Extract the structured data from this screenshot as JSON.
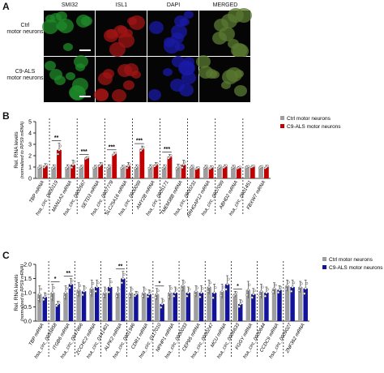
{
  "panels": [
    {
      "letter": "A"
    },
    {
      "letter": "B"
    },
    {
      "letter": "C"
    }
  ],
  "microscopy": {
    "columns": [
      "SMI32",
      "ISL1",
      "DAPI",
      "MERGED"
    ],
    "rows": [
      {
        "line1": "Ctrl",
        "line2": "motor neurons"
      },
      {
        "line1": "C9-ALS",
        "line2": "motor neurons"
      }
    ],
    "channel_colors": {
      "SMI32": "#1f8a2a",
      "ISL1": "#a01414",
      "DAPI": "#1a1aa8",
      "MERGED": "#5a7a30"
    }
  },
  "chart_data": [
    {
      "type": "bar",
      "panel": "B",
      "ylabel_line1": "Rel. RNA levels",
      "ylabel_line2": "(normalized to RPS9 mRNA)",
      "ylim": [
        0,
        5
      ],
      "yticks": [
        0,
        1,
        2,
        3,
        4,
        5
      ],
      "categories": [
        "TBP mRNA",
        "hsa_circ_0000119",
        "MAN1A2 mRNA",
        "hsa_circ_0000567",
        "SETD3 mRNA",
        "hsa_circ_0007778",
        "SLC25A16 mRNA",
        "hsa_circ_0000099",
        "AMY2B mRNA",
        "hsa_circ_0005171",
        "TMEM38B mRNA",
        "hsa_circ_0000231",
        "ARHGAP12 mRNA",
        "hsa_circ_0007099",
        "ABHD2 mRNA",
        "hsa_circ_0001451",
        "FBXW7 mRNA"
      ],
      "separators_after": [
        0,
        2,
        4,
        6,
        8,
        10,
        12,
        14
      ],
      "series": [
        {
          "name": "Ctrl motor neurons",
          "color": "#9e9e9e",
          "values": [
            1.0,
            1.0,
            1.0,
            1.0,
            1.0,
            1.0,
            1.0,
            1.0,
            1.0,
            1.0,
            1.0,
            1.0,
            1.0,
            1.0,
            1.0,
            1.0,
            1.0
          ],
          "errors": [
            0.15,
            0.2,
            0.2,
            0.15,
            0.15,
            0.2,
            0.15,
            0.2,
            0.2,
            0.2,
            0.25,
            0.15,
            0.15,
            0.15,
            0.15,
            0.1,
            0.1
          ]
        },
        {
          "name": "C9-ALS motor neurons",
          "color": "#c00000",
          "values": [
            1.1,
            2.5,
            1.2,
            1.8,
            1.2,
            2.15,
            1.1,
            2.6,
            1.2,
            1.9,
            1.2,
            0.9,
            0.95,
            1.05,
            0.95,
            1.05,
            1.0
          ],
          "errors": [
            0.2,
            0.6,
            0.4,
            0.1,
            0.2,
            0.15,
            0.3,
            0.25,
            0.2,
            0.2,
            0.4,
            0.1,
            0.15,
            0.15,
            0.1,
            0.1,
            0.15
          ]
        }
      ],
      "significance": [
        {
          "category": "hsa_circ_0000119",
          "label": "**"
        },
        {
          "category": "hsa_circ_0000567",
          "label": "***"
        },
        {
          "category": "hsa_circ_0007778",
          "label": "***"
        },
        {
          "category": "hsa_circ_0000099",
          "label": "***"
        },
        {
          "category": "hsa_circ_0005171",
          "label": "***"
        }
      ],
      "legend_position": "top-right"
    },
    {
      "type": "bar",
      "panel": "C",
      "ylabel_line1": "Rel. RNA levels",
      "ylabel_line2": "(normalized to RPS9 mRNA)",
      "ylim": [
        0,
        2.0
      ],
      "yticks": [
        0.0,
        0.5,
        1.0,
        1.5,
        2.0
      ],
      "categories": [
        "TBP mRNA",
        "hsa_circ_0055858",
        "ITGB6 mRNA",
        "hsa_circ_0047866",
        "ZCCHC2 mRNA",
        "hsa_circ_0141401",
        "ALPK2 mRNA",
        "hsa_circ_0001946",
        "CDR1 mRNA",
        "hsa_circ_0117010",
        "NPHP1 mRNA",
        "hsa_circ_0000033",
        "CEP85 mRNA",
        "hsa_circ_0000247",
        "MCU mRNA",
        "hsa_circ_0006633",
        "FGGY mRNA",
        "hsa_circ_0000644",
        "CCDC9 mRNA",
        "hsa_circ_0009027",
        "ZNF362 mRNA"
      ],
      "separators_after": [
        0,
        2,
        4,
        6,
        8,
        10,
        12,
        14,
        16,
        18
      ],
      "series": [
        {
          "name": "Ctrl motor neurons",
          "color": "#9e9e9e",
          "values": [
            0.95,
            1.0,
            1.0,
            1.1,
            1.15,
            1.0,
            1.0,
            1.0,
            1.0,
            0.95,
            1.0,
            1.25,
            1.05,
            1.2,
            1.05,
            0.95,
            1.1,
            1.05,
            1.15,
            1.25,
            1.2
          ],
          "errors": [
            0.3,
            0.3,
            0.25,
            0.25,
            0.3,
            0.2,
            0.2,
            0.2,
            0.2,
            0.2,
            0.25,
            0.2,
            0.2,
            0.25,
            0.25,
            0.1,
            0.3,
            0.25,
            0.2,
            0.2,
            0.2
          ]
        },
        {
          "name": "C9-ALS motor neurons",
          "color": "#13139a",
          "values": [
            0.85,
            0.6,
            1.3,
            1.05,
            1.2,
            1.2,
            1.5,
            0.95,
            0.95,
            0.6,
            1.0,
            1.0,
            1.0,
            1.0,
            1.3,
            0.6,
            0.95,
            1.0,
            1.1,
            1.2,
            1.15
          ],
          "errors": [
            0.15,
            0.1,
            0.2,
            0.2,
            0.25,
            0.3,
            0.25,
            0.1,
            0.15,
            0.2,
            0.2,
            0.2,
            0.25,
            0.3,
            0.3,
            0.15,
            0.2,
            0.2,
            0.15,
            0.25,
            0.3
          ]
        }
      ],
      "significance": [
        {
          "category": "hsa_circ_0055858",
          "label": "*"
        },
        {
          "category": "ITGB6 mRNA",
          "label": "**"
        },
        {
          "category": "ALPK2 mRNA",
          "label": "**"
        },
        {
          "category": "hsa_circ_0117010",
          "label": "*"
        },
        {
          "category": "hsa_circ_0006633",
          "label": "*"
        }
      ],
      "legend_position": "top-right"
    }
  ]
}
